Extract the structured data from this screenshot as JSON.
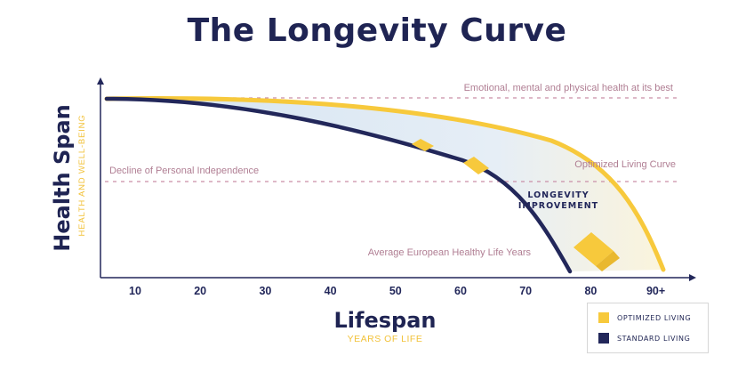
{
  "title": "The Longevity Curve",
  "colors": {
    "navy": "#22275a",
    "gold": "#f7c93c",
    "reference_line": "#c98fa8",
    "reference_text": "#b07e93",
    "fill": "#d7e6f3"
  },
  "chart_data": {
    "type": "line",
    "xlabel": "Lifespan",
    "xlabel_sub": "YEARS OF LIFE",
    "ylabel": "Health Span",
    "ylabel_sub": "HEALTH AND WELL-BEING",
    "x_ticks": [
      "10",
      "20",
      "30",
      "40",
      "50",
      "60",
      "70",
      "80",
      "90+"
    ],
    "series": [
      {
        "name": "OPTIMIZED LIVING",
        "color": "#f7c93c"
      },
      {
        "name": "STANDARD LIVING",
        "color": "#22275a"
      }
    ],
    "reference_lines": [
      {
        "label": "Emotional, mental and physical health at its best"
      },
      {
        "label": "Decline of Personal Independence"
      }
    ],
    "annotations": {
      "optimized": "Optimized Living Curve",
      "standard": "Average European Healthy Life Years",
      "gap_line1": "LONGEVITY",
      "gap_line2": "IMPROVEMENT"
    }
  }
}
